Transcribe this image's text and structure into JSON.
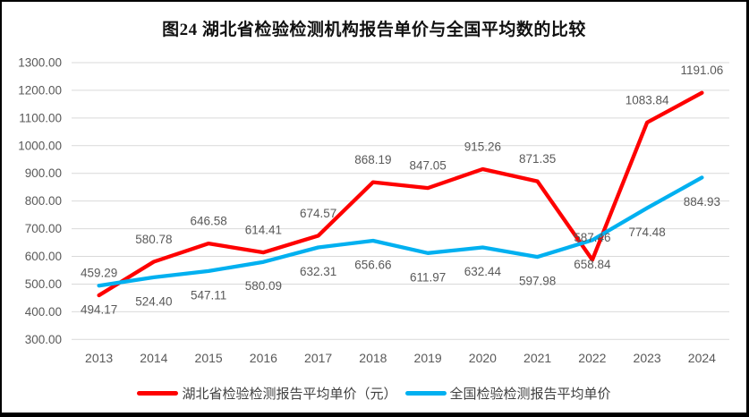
{
  "title": "图24 湖北省检验检测机构报告单价与全国平均数的比较",
  "colors": {
    "hubei_red": "#fe0000",
    "national_blue": "#00b0f0",
    "gridline": "#d9d9d9",
    "axis_text": "#595959",
    "data_label_text": "#595959",
    "title_text": "#111111",
    "legend_text": "#3f3f3f",
    "frame_border": "#000000"
  },
  "chart_data": {
    "type": "line",
    "title": "图24 湖北省检验检测机构报告单价与全国平均数的比较",
    "categories": [
      "2013",
      "2014",
      "2015",
      "2016",
      "2017",
      "2018",
      "2019",
      "2020",
      "2021",
      "2022",
      "2023",
      "2024"
    ],
    "series": [
      {
        "name": "湖北省检验检测报告平均单价（元）",
        "color_key": "hubei_red",
        "label_position": "above",
        "values": [
          459.29,
          580.78,
          646.58,
          614.41,
          674.57,
          868.19,
          847.05,
          915.26,
          871.35,
          587.46,
          1083.84,
          1191.06
        ]
      },
      {
        "name": "全国检验检测报告平均单价",
        "color_key": "national_blue",
        "label_position": "below",
        "values": [
          494.17,
          524.4,
          547.11,
          580.09,
          632.31,
          656.66,
          611.97,
          632.44,
          597.98,
          658.84,
          774.48,
          884.93
        ]
      }
    ],
    "xlabel": "",
    "ylabel": "",
    "ylim": [
      300,
      1300
    ],
    "ytick_step": 100,
    "ytick_labels": [
      "300.00",
      "400.00",
      "500.00",
      "600.00",
      "700.00",
      "800.00",
      "900.00",
      "1000.00",
      "1100.00",
      "1200.00",
      "1300.00"
    ],
    "grid": true,
    "legend_position": "bottom",
    "data_labels_decimals": 2
  }
}
